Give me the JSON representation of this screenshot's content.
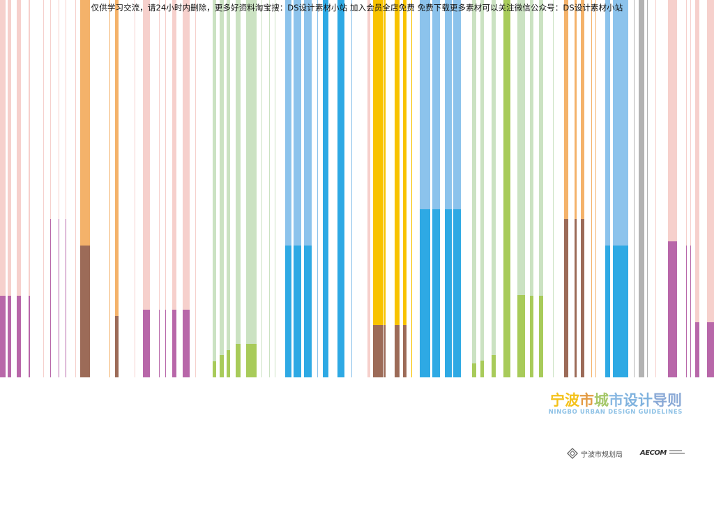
{
  "watermark": "仅供学习交流，请24小时内删除，更多好资料淘宝搜：DS设计素材小站 加入会员全店免费 免费下载更多素材可以关注微信公众号：DS设计素材小站",
  "title_cn": {
    "chars": [
      "宁",
      "波",
      "市",
      "城",
      "市",
      "设",
      "计",
      "导",
      "则"
    ],
    "colors": [
      "#f4c21b",
      "#f4c21b",
      "#e39b44",
      "#a6c86a",
      "#89b8e2",
      "#7fb2de",
      "#7fb2de",
      "#8aa9d6",
      "#8aa9d6"
    ]
  },
  "title_en": "NINGBO URBAN DESIGN GUIDELINES",
  "logos": {
    "bureau_label": "宁波市规划局",
    "aecom_label": "AECOM",
    "aecom_sub": "",
    "bureau_icon": "diamond-emblem-icon"
  },
  "colors": {
    "pink_light": "#f6d0cc",
    "magenta": "#b867a9",
    "orange": "#f4b26a",
    "brown": "#9c6b58",
    "green_light": "#cbe2c2",
    "green": "#a8cb5a",
    "blue_light": "#8cc3ec",
    "blue": "#2ea9e4",
    "yellow": "#f8c300",
    "gray": "#b3b3b3"
  }
}
